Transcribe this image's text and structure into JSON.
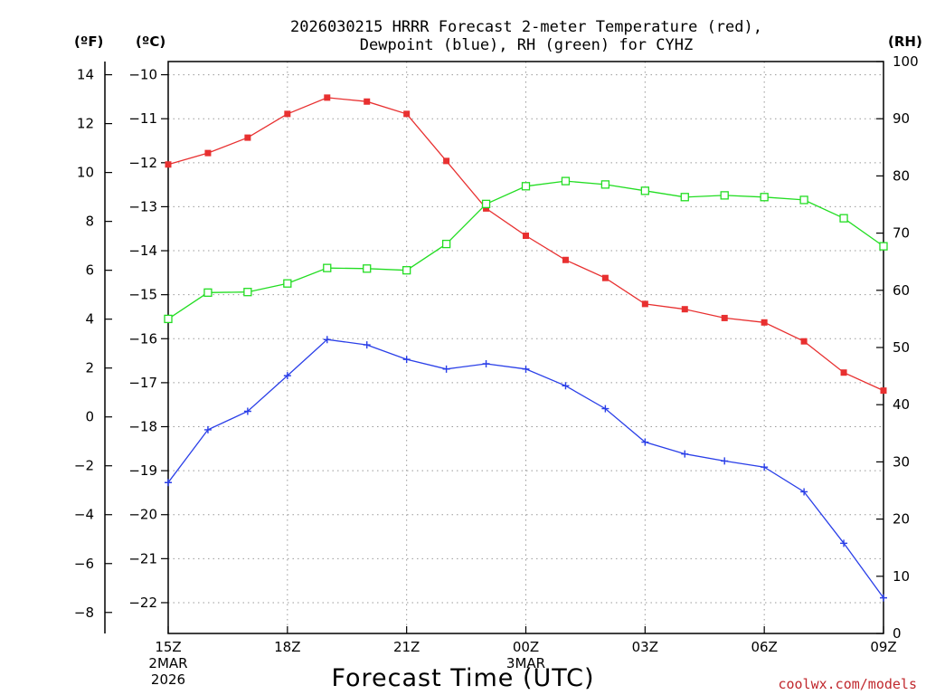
{
  "chart_data": {
    "type": "line",
    "title_line1": "2026030215 HRRR Forecast 2-meter Temperature (red),",
    "title_line2": "Dewpoint (blue), RH (green) for CYHZ",
    "unit_f": "(ºF)",
    "unit_c": "(ºC)",
    "unit_rh": "(RH)",
    "xlabel": "Forecast Time (UTC)",
    "credit": "coolwx.com/models",
    "x_hours": [
      0,
      1,
      2,
      3,
      4,
      5,
      6,
      7,
      8,
      9,
      10,
      11,
      12,
      13,
      14,
      15,
      16,
      17,
      18
    ],
    "x_ticks": [
      {
        "hour": 0,
        "label": "15Z",
        "sub1": "2MAR",
        "sub2": "2026"
      },
      {
        "hour": 3,
        "label": "18Z",
        "sub1": "",
        "sub2": ""
      },
      {
        "hour": 6,
        "label": "21Z",
        "sub1": "",
        "sub2": ""
      },
      {
        "hour": 9,
        "label": "00Z",
        "sub1": "3MAR",
        "sub2": ""
      },
      {
        "hour": 12,
        "label": "03Z",
        "sub1": "",
        "sub2": ""
      },
      {
        "hour": 15,
        "label": "06Z",
        "sub1": "",
        "sub2": ""
      },
      {
        "hour": 18,
        "label": "09Z",
        "sub1": "",
        "sub2": ""
      }
    ],
    "c_range": [
      -22.7,
      -9.7
    ],
    "c_ticks": [
      "−10",
      "−11",
      "−12",
      "−13",
      "−14",
      "−15",
      "−16",
      "−17",
      "−18",
      "−19",
      "−20",
      "−21",
      "−22"
    ],
    "c_tick_values": [
      -10,
      -11,
      -12,
      -13,
      -14,
      -15,
      -16,
      -17,
      -18,
      -19,
      -20,
      -21,
      -22
    ],
    "f_ticks": [
      "14",
      "12",
      "10",
      "8",
      "6",
      "4",
      "2",
      "0",
      "−2",
      "−4",
      "−6",
      "−8"
    ],
    "f_tick_values": [
      14,
      12,
      10,
      8,
      6,
      4,
      2,
      0,
      -2,
      -4,
      -6,
      -8
    ],
    "rh_range": [
      0,
      100
    ],
    "rh_ticks": [
      "100",
      "90",
      "80",
      "70",
      "60",
      "50",
      "40",
      "30",
      "20",
      "10",
      "0"
    ],
    "rh_tick_values": [
      100,
      90,
      80,
      70,
      60,
      50,
      40,
      30,
      20,
      10,
      0
    ],
    "series": [
      {
        "name": "Temperature",
        "axis": "c",
        "color": "#e83030",
        "marker": "filled-square",
        "values": [
          -12.04,
          -11.78,
          -11.43,
          -10.89,
          -10.52,
          -10.61,
          -10.89,
          -11.96,
          -13.04,
          -13.66,
          -14.21,
          -14.62,
          -15.21,
          -15.33,
          -15.53,
          -15.63,
          -16.06,
          -16.77,
          -17.18
        ]
      },
      {
        "name": "Dewpoint",
        "axis": "c",
        "color": "#2a3fe8",
        "marker": "plus",
        "values": [
          -19.27,
          -18.07,
          -17.65,
          -16.84,
          -16.02,
          -16.14,
          -16.47,
          -16.69,
          -16.57,
          -16.69,
          -17.07,
          -17.59,
          -18.35,
          -18.62,
          -18.78,
          -18.92,
          -19.48,
          -20.65,
          -21.89
        ]
      },
      {
        "name": "RH",
        "axis": "rh",
        "color": "#22dd22",
        "marker": "open-square",
        "values": [
          55,
          59.6,
          59.7,
          61.2,
          63.9,
          63.8,
          63.5,
          68.1,
          75.1,
          78.2,
          79.1,
          78.5,
          77.4,
          76.3,
          76.6,
          76.3,
          75.8,
          72.6,
          67.7
        ]
      }
    ]
  }
}
